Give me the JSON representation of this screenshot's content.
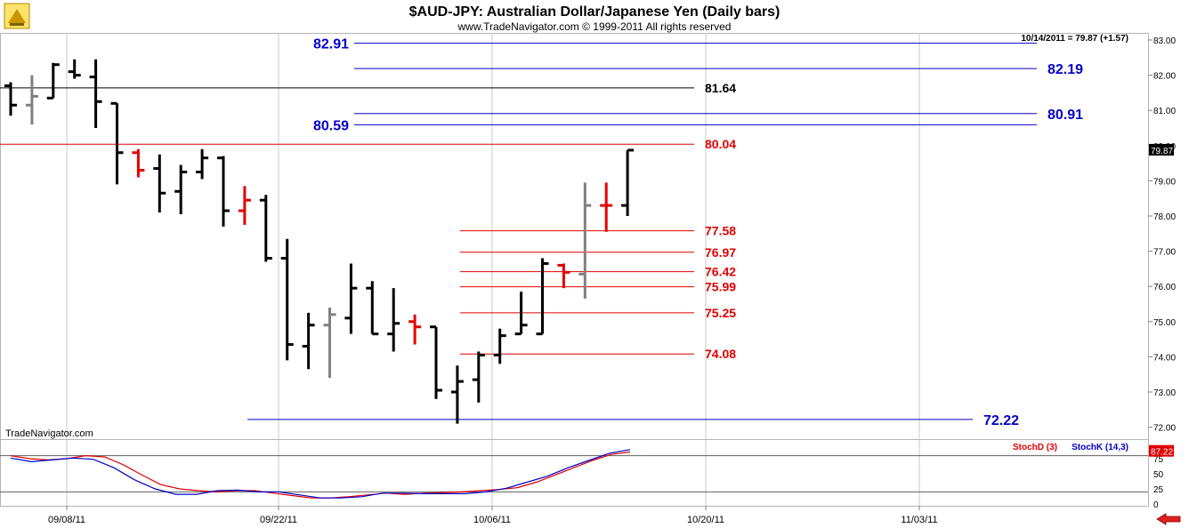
{
  "header": {
    "title": "$AUD-JPY:  Australian Dollar/Japanese Yen  (Daily bars)",
    "copyright": "www.TradeNavigator.com © 1999-2011 All rights reserved",
    "last_readout": "10/14/2011 = 79.87 (+1.57)"
  },
  "watermark": "TradeNavigator.com",
  "colors": {
    "black_bar": "#000000",
    "gray_bar": "#808080",
    "red_bar": "#e00000",
    "support_red": "#e00000",
    "resistance_blue": "#0000c8",
    "stochD": "#e00000",
    "stochK": "#0000c8"
  },
  "chart_data": [
    {
      "type": "ohlc",
      "title": "$AUD-JPY:  Australian Dollar/Japanese Yen  (Daily bars)",
      "ylim": [
        71.8,
        83.2
      ],
      "y_ticks": [
        72.0,
        73.0,
        74.0,
        75.0,
        76.0,
        77.0,
        78.0,
        79.0,
        80.0,
        81.0,
        82.0,
        83.0
      ],
      "x_ticks": [
        "09/08/11",
        "09/22/11",
        "10/06/11",
        "10/20/11",
        "11/03/11"
      ],
      "last_price": "79.87",
      "bars": [
        {
          "o": 81.7,
          "h": 81.8,
          "l": 80.85,
          "c": 81.15,
          "color": "black"
        },
        {
          "o": 81.15,
          "h": 82.0,
          "l": 80.6,
          "c": 81.4,
          "color": "gray"
        },
        {
          "o": 81.35,
          "h": 82.35,
          "l": 81.35,
          "c": 82.3,
          "color": "black"
        },
        {
          "o": 82.1,
          "h": 82.45,
          "l": 81.9,
          "c": 82.0,
          "color": "black"
        },
        {
          "o": 81.95,
          "h": 82.45,
          "l": 80.5,
          "c": 81.25,
          "color": "black"
        },
        {
          "o": 81.2,
          "h": 81.2,
          "l": 78.9,
          "c": 79.8,
          "color": "black"
        },
        {
          "o": 79.8,
          "h": 79.9,
          "l": 79.1,
          "c": 79.3,
          "color": "red"
        },
        {
          "o": 79.35,
          "h": 79.75,
          "l": 78.1,
          "c": 78.65,
          "color": "black"
        },
        {
          "o": 78.7,
          "h": 79.45,
          "l": 78.05,
          "c": 79.25,
          "color": "black"
        },
        {
          "o": 79.25,
          "h": 79.9,
          "l": 79.05,
          "c": 79.65,
          "color": "black"
        },
        {
          "o": 79.65,
          "h": 79.7,
          "l": 77.7,
          "c": 78.15,
          "color": "black"
        },
        {
          "o": 78.15,
          "h": 78.85,
          "l": 77.75,
          "c": 78.45,
          "color": "red"
        },
        {
          "o": 78.45,
          "h": 78.6,
          "l": 76.7,
          "c": 76.8,
          "color": "black"
        },
        {
          "o": 76.8,
          "h": 77.35,
          "l": 73.9,
          "c": 74.35,
          "color": "black"
        },
        {
          "o": 74.3,
          "h": 75.25,
          "l": 73.65,
          "c": 74.9,
          "color": "black"
        },
        {
          "o": 74.9,
          "h": 75.4,
          "l": 73.4,
          "c": 75.2,
          "color": "gray"
        },
        {
          "o": 75.1,
          "h": 76.65,
          "l": 74.65,
          "c": 75.95,
          "color": "black"
        },
        {
          "o": 75.95,
          "h": 76.15,
          "l": 74.65,
          "c": 74.65,
          "color": "black"
        },
        {
          "o": 74.65,
          "h": 75.95,
          "l": 74.15,
          "c": 74.95,
          "color": "black"
        },
        {
          "o": 75.0,
          "h": 75.2,
          "l": 74.35,
          "c": 74.85,
          "color": "red"
        },
        {
          "o": 74.85,
          "h": 74.85,
          "l": 72.8,
          "c": 73.05,
          "color": "black"
        },
        {
          "o": 73.0,
          "h": 73.75,
          "l": 72.1,
          "c": 73.3,
          "color": "black"
        },
        {
          "o": 73.35,
          "h": 74.15,
          "l": 72.7,
          "c": 74.05,
          "color": "black"
        },
        {
          "o": 74.05,
          "h": 74.8,
          "l": 73.8,
          "c": 74.6,
          "color": "black"
        },
        {
          "o": 74.65,
          "h": 75.85,
          "l": 74.65,
          "c": 74.9,
          "color": "black"
        },
        {
          "o": 74.65,
          "h": 76.8,
          "l": 74.65,
          "c": 76.65,
          "color": "black"
        },
        {
          "o": 76.6,
          "h": 76.65,
          "l": 75.95,
          "c": 76.4,
          "color": "red"
        },
        {
          "o": 76.35,
          "h": 78.95,
          "l": 75.65,
          "c": 78.3,
          "color": "gray"
        },
        {
          "o": 78.3,
          "h": 78.95,
          "l": 77.55,
          "c": 78.3,
          "color": "red"
        },
        {
          "o": 78.3,
          "h": 79.87,
          "l": 78.0,
          "c": 79.87,
          "color": "black"
        }
      ],
      "levels": [
        {
          "value": 82.91,
          "label": "82.91",
          "color": "blue",
          "label_side": "left"
        },
        {
          "value": 82.19,
          "label": "82.19",
          "color": "blue",
          "label_side": "right"
        },
        {
          "value": 81.64,
          "label": "81.64",
          "color": "black",
          "label_side": "right"
        },
        {
          "value": 80.91,
          "label": "80.91",
          "color": "blue",
          "label_side": "right"
        },
        {
          "value": 80.59,
          "label": "80.59",
          "color": "blue",
          "label_side": "left"
        },
        {
          "value": 80.04,
          "label": "80.04",
          "color": "red",
          "label_side": "right"
        },
        {
          "value": 77.58,
          "label": "77.58",
          "color": "red",
          "label_side": "right"
        },
        {
          "value": 76.97,
          "label": "76.97",
          "color": "red",
          "label_side": "right"
        },
        {
          "value": 76.42,
          "label": "76.42",
          "color": "red",
          "label_side": "right"
        },
        {
          "value": 75.99,
          "label": "75.99",
          "color": "red",
          "label_side": "right"
        },
        {
          "value": 75.25,
          "label": "75.25",
          "color": "red",
          "label_side": "right"
        },
        {
          "value": 74.08,
          "label": "74.08",
          "color": "red",
          "label_side": "right"
        },
        {
          "value": 72.22,
          "label": "72.22",
          "color": "blue",
          "label_side": "right"
        }
      ]
    },
    {
      "type": "line",
      "ylim": [
        0,
        100
      ],
      "y_ticks": [
        0,
        25,
        50,
        75
      ],
      "levels": [
        80,
        20
      ],
      "last_value": "87.22",
      "series": [
        {
          "name": "StochD (3)",
          "color": "red",
          "values": [
            80,
            75,
            73,
            75,
            80,
            78,
            65,
            48,
            32,
            25,
            22,
            20,
            22,
            22,
            18,
            14,
            10,
            10,
            12,
            15,
            18,
            16,
            18,
            19,
            20,
            22,
            24,
            27,
            36,
            48,
            60,
            72,
            82,
            86
          ]
        },
        {
          "name": "StochK (14,3)",
          "color": "blue",
          "values": [
            76,
            70,
            73,
            76,
            74,
            60,
            40,
            25,
            16,
            16,
            22,
            23,
            20,
            20,
            15,
            10,
            10,
            12,
            18,
            18,
            17,
            17,
            17,
            20,
            26,
            36,
            46,
            60,
            72,
            84,
            90
          ]
        }
      ]
    }
  ]
}
